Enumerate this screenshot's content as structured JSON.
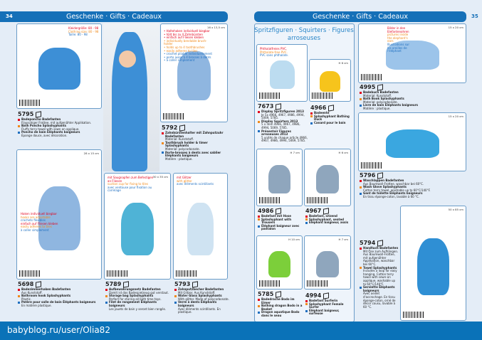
{
  "header": {
    "title": "Geschenke · Gifts · Cadeaux",
    "left_page": "34",
    "right_page": "35"
  },
  "squirters_title": "Spritzfiguren · Squirters · Figures arroseuses",
  "footer": {
    "url": "babyblog.ru/user/Olia82"
  },
  "colors": {
    "brand": "#1570b8",
    "de": "#e3001b",
    "en": "#f08a1c",
    "fr": "#1f6fc0"
  },
  "products": {
    "5795": {
      "code": "5795",
      "size": "",
      "notes": [
        {
          "c": "de",
          "t": "Kleidergröße: 80 - 98"
        },
        {
          "c": "en",
          "t": "Clothing size: 80 - 98"
        },
        {
          "c": "fr",
          "t": "Taille: 80 - 98"
        }
      ],
      "lines": [
        {
          "c": "de",
          "title": "Badeponcho Badefanten",
          "desc": "Flauschiger Frottee, mit aufgenähter Applikation."
        },
        {
          "c": "en",
          "title": "Bath Poncho Splashyphants",
          "desc": "Fluffy terry towel with sewn on applique."
        },
        {
          "c": "fr",
          "title": "Poncho de bain Éléphants baigneurs",
          "desc": "Éponge douce, avec décoration."
        }
      ]
    },
    "5792": {
      "code": "5792",
      "size": "16 x 13,5 cm",
      "notes": [
        {
          "c": "de",
          "t": "• Haltehaken individuell biegbar"
        },
        {
          "c": "de",
          "t": "• hält bis zu 4 Zahnbürsten"
        },
        {
          "c": "de",
          "t": "• einfach auf Fliesen kleben"
        },
        {
          "c": "en",
          "t": "• individually bendable brush-holder"
        },
        {
          "c": "en",
          "t": "• holds up to 4 toothbrushes"
        },
        {
          "c": "en",
          "t": "• easily adheres to tiles"
        },
        {
          "c": "fr",
          "t": "• crochet pliable individuellement"
        },
        {
          "c": "fr",
          "t": "• porte jusqu'à 4 brosses à dents"
        },
        {
          "c": "fr",
          "t": "• à coller simplement"
        }
      ],
      "lines": [
        {
          "c": "de",
          "title": "Zahnbürstenhalter mit Zahnputzuhr Badefanten",
          "desc": "Material: Kunststoff."
        },
        {
          "c": "en",
          "title": "Toothbrush holder & timer Splashyphants",
          "desc": "Material: polycarbonate."
        },
        {
          "c": "fr",
          "title": "Porte-brosses à dents avec sablier Éléphants baigneurs",
          "desc": "Matière : plastique."
        }
      ]
    },
    "5698": {
      "code": "5698",
      "size": "28 x 15 cm",
      "notes": [
        {
          "c": "de",
          "t": "Haken individuell biegbar"
        },
        {
          "c": "en",
          "t": "hooks are adjustable"
        },
        {
          "c": "fr",
          "t": "crochets flexibles"
        },
        {
          "c": "de",
          "t": "einfach auf Fliesen kleben"
        },
        {
          "c": "en",
          "t": "easily adheres to tiles"
        },
        {
          "c": "fr",
          "t": "à coller simplement"
        }
      ],
      "lines": [
        {
          "c": "de",
          "title": "Badezimmerhaken Badefanten",
          "desc": "Aus Kunststoff."
        },
        {
          "c": "en",
          "title": "Bathroom hook Splashyphants",
          "desc": "Plastic."
        },
        {
          "c": "fr",
          "title": "Patère pour salle de bain Éléphants baigneurs",
          "desc": "En matière plastique."
        }
      ]
    },
    "5789": {
      "code": "5789",
      "size": "30 x 35 cm",
      "notes": [
        {
          "c": "de",
          "t": "mit Saugnapfen zum Befestigen an Fliesen"
        },
        {
          "c": "en",
          "t": "suction cup for fixing to tiles"
        },
        {
          "c": "fr",
          "t": "avec ventouse pour fixation au carrelage"
        }
      ],
      "lines": [
        {
          "c": "de",
          "title": "Aufbewahrungsnetz Badefanten",
          "desc": "Damit ist das Badespielzeug gut verstaut."
        },
        {
          "c": "en",
          "title": "Storage bag Splashyphants",
          "desc": "Perfect for storing all bath time toys."
        },
        {
          "c": "fr",
          "title": "Filet de rangement Éléphants baigneurs",
          "desc": "Les jouets de bain y seront bien rangés."
        }
      ]
    },
    "5793": {
      "code": "5793",
      "size": "",
      "notes": [
        {
          "c": "de",
          "t": "mit Glitzer"
        },
        {
          "c": "en",
          "t": "with glitter"
        },
        {
          "c": "fr",
          "t": "avec éléments scintillants"
        }
      ],
      "lines": [
        {
          "c": "de",
          "title": "Zahnputzbecher Badefanten",
          "desc": "Mit Glitzer. Aus Kunststoff."
        },
        {
          "c": "en",
          "title": "Water Glass Splashyphants",
          "desc": "With glitter. Made of polycarbonate."
        },
        {
          "c": "fr",
          "title": "Verre à dents Éléphants baigneurs",
          "desc": "Avec éléments scintillants. En plastique."
        }
      ]
    },
    "7673": {
      "code": "7673",
      "size": "",
      "notes": [
        {
          "c": "de",
          "t": "Phthalatfreies PVC."
        },
        {
          "c": "en",
          "t": "Phthalate-free PVC."
        },
        {
          "c": "fr",
          "t": "PVC sans phthalate."
        }
      ],
      "lines": [
        {
          "c": "de",
          "title": "Display Spritzfiguren 2013",
          "desc": "Je 5x 4966, 4967, 4986, 4994, 5069, 5785."
        },
        {
          "c": "en",
          "title": "Display Squirters 2013",
          "desc": "5 x item 4966, 4967, 4986, 4994, 5069, 5785."
        },
        {
          "c": "fr",
          "title": "Présentoir Figures arroseuses 2013",
          "desc": "5 unités de chaque article 4966, 4967, 4986, 4994, 5069, 5785."
        }
      ]
    },
    "4966": {
      "code": "4966",
      "size": "H 6 cm",
      "notes": [],
      "lines": [
        {
          "c": "de",
          "title": "Badeente",
          "desc": ""
        },
        {
          "c": "en",
          "title": "Splashyphant Bathing Duck",
          "desc": ""
        },
        {
          "c": "fr",
          "title": "Canard pour le bain",
          "desc": ""
        }
      ]
    },
    "4986": {
      "code": "4986",
      "size": "H 7 cm",
      "notes": [],
      "lines": [
        {
          "c": "de",
          "title": "Badefant mit Hose",
          "desc": ""
        },
        {
          "c": "en",
          "title": "Splashyphant with Trousers",
          "desc": ""
        },
        {
          "c": "fr",
          "title": "Éléphant baigneur avec pantalon",
          "desc": ""
        }
      ]
    },
    "4967": {
      "code": "4967",
      "size": "H 6 cm",
      "notes": [],
      "lines": [
        {
          "c": "de",
          "title": "Badefant, sitzend",
          "desc": ""
        },
        {
          "c": "en",
          "title": "Splashyphant, seated",
          "desc": ""
        },
        {
          "c": "fr",
          "title": "Éléphant baigneur, assis",
          "desc": ""
        }
      ]
    },
    "5785": {
      "code": "5785",
      "size": "H 10 cm",
      "notes": [],
      "lines": [
        {
          "c": "de",
          "title": "Badedrache Bodo im Eimer",
          "desc": ""
        },
        {
          "c": "en",
          "title": "Bathing dragon Bodo in a Basket",
          "desc": ""
        },
        {
          "c": "fr",
          "title": "Dragon aquatique Bodo dans le seau",
          "desc": ""
        }
      ]
    },
    "4994": {
      "code": "4994",
      "size": "H 7 cm",
      "notes": [],
      "lines": [
        {
          "c": "de",
          "title": "Badefant Surferin",
          "desc": ""
        },
        {
          "c": "en",
          "title": "Splashyphant Female Surfer",
          "desc": ""
        },
        {
          "c": "fr",
          "title": "Éléphant baigneur, surfeuse",
          "desc": ""
        }
      ]
    },
    "4995": {
      "code": "4995",
      "size": "15 x 20 cm",
      "notes": [
        {
          "c": "de",
          "t": "Bilder in den Elefantenohren"
        },
        {
          "c": "en",
          "t": "pictures inside the elephant's ears"
        },
        {
          "c": "fr",
          "t": "Illustrations sur les oreilles de l'éléphant"
        }
      ],
      "lines": [
        {
          "c": "de",
          "title": "Badebuch Badefanten",
          "desc": "Material: Kunststoff."
        },
        {
          "c": "en",
          "title": "Bath Book Splashyphants",
          "desc": "Material: polycarbonate."
        },
        {
          "c": "fr",
          "title": "Livre de bain Éléphants baigneurs",
          "desc": "Matière : plastique."
        }
      ]
    },
    "5796": {
      "code": "5796",
      "size": "15 x 20 cm",
      "notes": [],
      "lines": [
        {
          "c": "de",
          "title": "Waschlappen Badefanten",
          "desc": "Aus Baumwoll-Frottee, waschbar bei 60°C."
        },
        {
          "c": "en",
          "title": "Wash Glove Splashyphants",
          "desc": "Cotton terry towel, washable up to 60°C/140°F."
        },
        {
          "c": "fr",
          "title": "Gant de toilette Éléphants baigneurs",
          "desc": "En tissu éponge-coton, lavable à 60 °C."
        }
      ]
    },
    "5794": {
      "code": "5794",
      "size": "50 x 85 cm",
      "notes": [],
      "lines": [
        {
          "c": "de",
          "title": "Handtuch Badefanten",
          "desc": "Mit Öse zum Aufhängen. Aus Baumwoll-Frottee, mit aufgenähter Applikation, waschbar bei 60°C."
        },
        {
          "c": "en",
          "title": "Towel Splashyphants",
          "desc": "Includes a loop for easy hanging. Cotton terry towel with sewn-on applique, washable up to 60°C/140°F."
        },
        {
          "c": "fr",
          "title": "Serviette Éléphants baigneurs",
          "desc": "Avec oeillet d'accrochage. En tissu éponge-coton, orné de décor cousu, lavable à 60 °C."
        }
      ]
    }
  }
}
